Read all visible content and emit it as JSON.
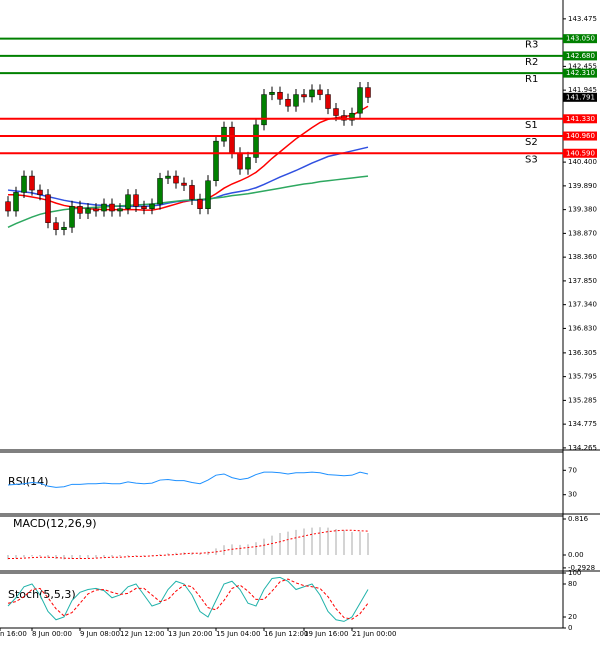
{
  "chart_data": [
    {
      "type": "candlestick",
      "ylim": [
        134.22,
        143.88
      ],
      "yticks": [
        143.475,
        142.455,
        141.945,
        {
          "value": 140.4,
          "label": "140.400"
        },
        {
          "value": 139.89,
          "label": "139.890"
        },
        {
          "value": 139.38,
          "label": "139.380"
        },
        {
          "value": 138.87,
          "label": "138.870"
        },
        {
          "value": 138.36,
          "label": "138.360"
        },
        {
          "value": 137.85,
          "label": "137.850"
        },
        {
          "value": 137.34,
          "label": "137.340"
        },
        {
          "value": 136.83,
          "label": "136.830"
        },
        136.305,
        135.795,
        135.285,
        134.775,
        134.265
      ],
      "xticks": [
        {
          "value": -1,
          "label": "n 16:00"
        },
        {
          "value": 3,
          "label": "8 Jun 00:00"
        },
        {
          "value": 9,
          "label": "9 Jun 08:00"
        },
        {
          "value": 14,
          "label": "12 Jun 12:00"
        },
        {
          "value": 20,
          "label": "13 Jun 20:00"
        },
        {
          "value": 26,
          "label": "15 Jun 04:00"
        },
        {
          "value": 32,
          "label": "16 Jun 12:00"
        },
        {
          "value": 37,
          "label": "19 Jun 16:00"
        },
        {
          "value": 43,
          "label": "21 Jun 00:00"
        }
      ],
      "up_color": "#008000",
      "down_color": "#e00000",
      "open": [
        139.55,
        139.35,
        139.75,
        140.1,
        139.8,
        139.7,
        139.1,
        138.95,
        139.0,
        139.45,
        139.3,
        139.4,
        139.35,
        139.5,
        139.35,
        139.4,
        139.7,
        139.45,
        139.4,
        139.5,
        140.05,
        140.1,
        139.95,
        139.9,
        139.6,
        139.4,
        140.0,
        140.85,
        141.15,
        140.6,
        140.25,
        140.5,
        141.2,
        141.85,
        141.9,
        141.75,
        141.6,
        141.85,
        141.8,
        141.95,
        141.85,
        141.55,
        141.4,
        141.3,
        141.45,
        142.0
      ],
      "high": [
        139.67,
        139.87,
        140.22,
        140.22,
        139.92,
        139.82,
        139.22,
        139.12,
        139.57,
        139.57,
        139.52,
        139.52,
        139.62,
        139.62,
        139.52,
        139.82,
        139.82,
        139.57,
        139.62,
        140.17,
        140.22,
        140.22,
        140.07,
        140.02,
        139.72,
        140.12,
        140.97,
        141.27,
        141.27,
        140.72,
        140.62,
        141.32,
        141.97,
        142.02,
        142.02,
        141.87,
        141.97,
        141.97,
        142.07,
        142.07,
        141.97,
        141.67,
        141.52,
        141.57,
        142.12,
        142.12
      ],
      "low": [
        139.23,
        139.23,
        139.63,
        139.68,
        139.58,
        138.98,
        138.83,
        138.83,
        138.88,
        139.18,
        139.18,
        139.23,
        139.23,
        139.23,
        139.23,
        139.28,
        139.33,
        139.28,
        139.28,
        139.38,
        139.93,
        139.83,
        139.78,
        139.48,
        139.28,
        139.28,
        139.88,
        140.73,
        140.48,
        140.13,
        140.13,
        140.38,
        141.08,
        141.73,
        141.63,
        141.48,
        141.48,
        141.68,
        141.68,
        141.73,
        141.43,
        141.28,
        141.18,
        141.18,
        141.33,
        141.67
      ],
      "close": [
        139.35,
        139.75,
        140.1,
        139.8,
        139.7,
        139.1,
        138.95,
        139.0,
        139.45,
        139.3,
        139.4,
        139.35,
        139.5,
        139.35,
        139.4,
        139.7,
        139.45,
        139.4,
        139.5,
        140.05,
        140.1,
        139.95,
        139.9,
        139.6,
        139.4,
        140.0,
        140.85,
        141.15,
        140.6,
        140.25,
        140.5,
        141.2,
        141.85,
        141.9,
        141.75,
        141.6,
        141.85,
        141.8,
        141.95,
        141.85,
        141.55,
        141.4,
        141.3,
        141.45,
        142.0,
        141.79
      ],
      "series": [
        {
          "color": "#ff0000",
          "values": [
            139.7,
            139.7,
            139.68,
            139.65,
            139.62,
            139.58,
            139.52,
            139.47,
            139.44,
            139.42,
            139.4,
            139.39,
            139.38,
            139.38,
            139.38,
            139.38,
            139.38,
            139.37,
            139.37,
            139.4,
            139.45,
            139.5,
            139.55,
            139.58,
            139.58,
            139.62,
            139.72,
            139.84,
            139.93,
            140.0,
            140.08,
            140.18,
            140.32,
            140.48,
            140.62,
            140.76,
            140.9,
            141.02,
            141.14,
            141.25,
            141.32,
            141.35,
            141.38,
            141.4,
            141.5,
            141.6
          ]
        },
        {
          "color": "#3050e0",
          "values": [
            139.8,
            139.78,
            139.76,
            139.74,
            139.7,
            139.66,
            139.62,
            139.58,
            139.55,
            139.52,
            139.5,
            139.48,
            139.47,
            139.46,
            139.45,
            139.45,
            139.45,
            139.45,
            139.46,
            139.48,
            139.52,
            139.55,
            139.57,
            139.58,
            139.58,
            139.6,
            139.64,
            139.7,
            139.74,
            139.77,
            139.8,
            139.85,
            139.92,
            140.0,
            140.08,
            140.15,
            140.22,
            140.3,
            140.38,
            140.45,
            140.52,
            140.56,
            140.6,
            140.64,
            140.68,
            140.72
          ]
        },
        {
          "color": "#2ea860",
          "values": [
            139.0,
            139.08,
            139.15,
            139.22,
            139.28,
            139.32,
            139.35,
            139.38,
            139.4,
            139.41,
            139.42,
            139.43,
            139.44,
            139.45,
            139.46,
            139.47,
            139.48,
            139.49,
            139.5,
            139.52,
            139.54,
            139.56,
            139.58,
            139.59,
            139.6,
            139.61,
            139.63,
            139.65,
            139.68,
            139.7,
            139.72,
            139.75,
            139.78,
            139.81,
            139.84,
            139.87,
            139.9,
            139.93,
            139.95,
            139.98,
            140.0,
            140.02,
            140.04,
            140.06,
            140.08,
            140.1
          ]
        }
      ],
      "levels": [
        {
          "label": "R3",
          "value": 143.05,
          "value_label": "143.050",
          "color": "#008000"
        },
        {
          "label": "R2",
          "value": 142.68,
          "value_label": "142.680",
          "color": "#008000"
        },
        {
          "label": "R1",
          "value": 142.31,
          "value_label": "142.310",
          "color": "#008000"
        },
        {
          "label": "S1",
          "value": 141.33,
          "value_label": "141.330",
          "color": "#ff0000"
        },
        {
          "label": "S2",
          "value": 140.96,
          "value_label": "140.960",
          "color": "#ff0000"
        },
        {
          "label": "S3",
          "value": 140.59,
          "value_label": "140.590",
          "color": "#ff0000"
        }
      ],
      "current": 141.791
    },
    {
      "type": "line",
      "title": "RSI(14)",
      "ylim": [
        0,
        100
      ],
      "yticks": [
        70,
        30
      ],
      "series": [
        {
          "color": "#1e90ff",
          "values": [
            46,
            47,
            48,
            50,
            49,
            44,
            42,
            43,
            47,
            47,
            48,
            48,
            49,
            48,
            48,
            51,
            49,
            48,
            49,
            54,
            55,
            53,
            53,
            50,
            48,
            54,
            62,
            64,
            58,
            55,
            57,
            63,
            67,
            67,
            66,
            64,
            66,
            66,
            67,
            66,
            63,
            62,
            61,
            62,
            67,
            64
          ]
        }
      ]
    },
    {
      "type": "macd",
      "title": "MACD(12,26,9)",
      "ylim": [
        -0.34,
        0.884
      ],
      "yticks": [
        0.816,
        {
          "value": 0,
          "label": "0.00"
        },
        -0.2928
      ],
      "histogram": {
        "color": "#a8a8a8",
        "values": [
          -0.1,
          -0.08,
          -0.05,
          -0.03,
          -0.03,
          -0.06,
          -0.09,
          -0.1,
          -0.09,
          -0.08,
          -0.07,
          -0.06,
          -0.05,
          -0.04,
          -0.03,
          -0.02,
          -0.02,
          -0.02,
          -0.01,
          0.02,
          0.04,
          0.05,
          0.06,
          0.05,
          0.04,
          0.08,
          0.15,
          0.22,
          0.24,
          0.23,
          0.24,
          0.29,
          0.37,
          0.44,
          0.5,
          0.53,
          0.57,
          0.6,
          0.62,
          0.63,
          0.62,
          0.59,
          0.56,
          0.52,
          0.53,
          0.5
        ]
      },
      "signal": {
        "color": "#ff0000",
        "values": [
          -0.08,
          -0.08,
          -0.07,
          -0.06,
          -0.05,
          -0.05,
          -0.06,
          -0.07,
          -0.08,
          -0.08,
          -0.08,
          -0.07,
          -0.06,
          -0.05,
          -0.05,
          -0.04,
          -0.03,
          -0.03,
          -0.02,
          -0.01,
          0.0,
          0.01,
          0.03,
          0.04,
          0.04,
          0.05,
          0.07,
          0.1,
          0.13,
          0.15,
          0.17,
          0.19,
          0.22,
          0.26,
          0.3,
          0.35,
          0.39,
          0.43,
          0.47,
          0.5,
          0.53,
          0.55,
          0.56,
          0.56,
          0.55,
          0.54
        ]
      }
    },
    {
      "type": "line",
      "title": "Stoch(5,5,3)",
      "ylim": [
        0,
        100
      ],
      "yticks": [
        100,
        80,
        20,
        0
      ],
      "series": [
        {
          "color": "#20b2aa",
          "values": [
            40,
            55,
            75,
            80,
            60,
            30,
            15,
            20,
            50,
            65,
            70,
            72,
            68,
            55,
            60,
            75,
            80,
            60,
            40,
            45,
            70,
            85,
            80,
            60,
            30,
            20,
            50,
            80,
            85,
            70,
            45,
            40,
            70,
            90,
            92,
            85,
            70,
            75,
            80,
            60,
            30,
            15,
            12,
            20,
            45,
            70
          ]
        },
        {
          "color": "#ff0000",
          "dash": true,
          "values": [
            45,
            48,
            57,
            70,
            72,
            55,
            35,
            22,
            28,
            45,
            62,
            69,
            70,
            65,
            61,
            63,
            72,
            72,
            60,
            48,
            52,
            67,
            78,
            75,
            57,
            37,
            33,
            50,
            72,
            78,
            67,
            52,
            52,
            67,
            84,
            89,
            82,
            77,
            75,
            72,
            57,
            35,
            19,
            16,
            26,
            45
          ]
        }
      ]
    }
  ]
}
